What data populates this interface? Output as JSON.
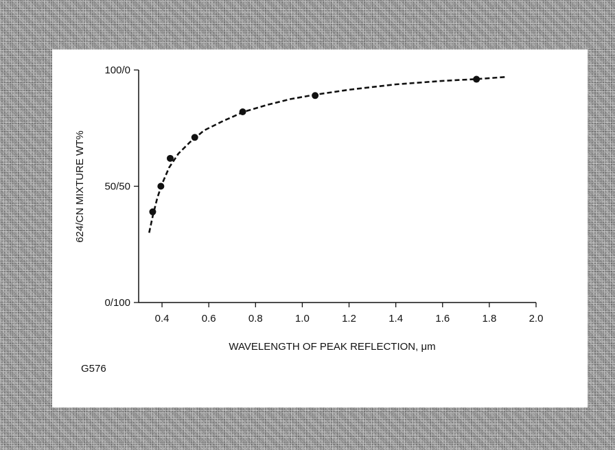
{
  "figure_id": "G576",
  "chart_data": {
    "type": "scatter",
    "title": "",
    "xlabel": "WAVELENGTH OF PEAK REFLECTION, μm",
    "ylabel": "624/CN MIXTURE WT%",
    "xlim": [
      0.3,
      2.0
    ],
    "ylim": [
      0,
      100
    ],
    "x_ticks": [
      0.4,
      0.6,
      0.8,
      1.0,
      1.2,
      1.4,
      1.6,
      1.8,
      2.0
    ],
    "x_tick_labels": [
      "0.4",
      "0.6",
      "0.8",
      "1.0",
      "1.2",
      "1.4",
      "1.6",
      "1.8",
      "2.0"
    ],
    "y_ticks": [
      0,
      50,
      100
    ],
    "y_tick_labels": [
      "0/100",
      "50/50",
      "100/0"
    ],
    "points": [
      {
        "x": 0.36,
        "y": 39
      },
      {
        "x": 0.395,
        "y": 50
      },
      {
        "x": 0.435,
        "y": 62
      },
      {
        "x": 0.54,
        "y": 71
      },
      {
        "x": 0.745,
        "y": 82
      },
      {
        "x": 1.055,
        "y": 89
      },
      {
        "x": 1.745,
        "y": 96
      }
    ],
    "fit_curve": {
      "style": "dashed",
      "x": [
        0.345,
        0.36,
        0.38,
        0.4,
        0.43,
        0.47,
        0.52,
        0.58,
        0.66,
        0.75,
        0.85,
        0.95,
        1.05,
        1.2,
        1.4,
        1.6,
        1.75,
        1.87
      ],
      "y": [
        30,
        37,
        45,
        51,
        58,
        64,
        69,
        74,
        78,
        82,
        85,
        87.5,
        89.3,
        91.5,
        93.8,
        95.3,
        96.1,
        97
      ]
    },
    "grid": false,
    "legend": "none",
    "colors": {
      "ink": "#111111"
    }
  }
}
